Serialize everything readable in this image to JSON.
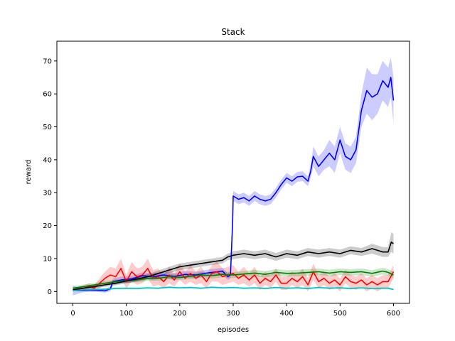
{
  "chart_data": {
    "type": "line",
    "title": "Stack",
    "xlabel": "episodes",
    "ylabel": "reward",
    "xlim": [
      -30,
      630
    ],
    "ylim": [
      -3.6,
      76
    ],
    "xticks": [
      0,
      100,
      200,
      300,
      400,
      500,
      600
    ],
    "yticks": [
      0,
      10,
      20,
      30,
      40,
      50,
      60,
      70
    ],
    "grid": false,
    "legend": "none",
    "series": [
      {
        "color": "#0000ff",
        "band_color": "#0000ff",
        "points": [
          [
            0,
            0.3
          ],
          [
            20,
            0.3
          ],
          [
            40,
            0.4
          ],
          [
            60,
            0.2
          ],
          [
            70,
            0.8
          ],
          [
            75,
            3
          ],
          [
            90,
            3.5
          ],
          [
            110,
            3.8
          ],
          [
            130,
            4.8
          ],
          [
            150,
            4.5
          ],
          [
            170,
            5.0
          ],
          [
            190,
            4.6
          ],
          [
            210,
            5.2
          ],
          [
            230,
            5.0
          ],
          [
            250,
            5.6
          ],
          [
            270,
            6.0
          ],
          [
            280,
            6.2
          ],
          [
            290,
            4.5
          ],
          [
            295,
            5
          ],
          [
            299,
            21
          ],
          [
            300,
            29
          ],
          [
            310,
            28
          ],
          [
            320,
            28.5
          ],
          [
            330,
            27.5
          ],
          [
            340,
            29
          ],
          [
            350,
            28
          ],
          [
            360,
            27.5
          ],
          [
            370,
            28
          ],
          [
            380,
            30
          ],
          [
            390,
            32.5
          ],
          [
            400,
            34.5
          ],
          [
            410,
            33.5
          ],
          [
            420,
            34.8
          ],
          [
            430,
            35
          ],
          [
            440,
            33.5
          ],
          [
            445,
            36.5
          ],
          [
            450,
            41
          ],
          [
            460,
            38
          ],
          [
            470,
            40
          ],
          [
            480,
            42
          ],
          [
            490,
            40
          ],
          [
            500,
            46
          ],
          [
            510,
            41
          ],
          [
            520,
            40
          ],
          [
            530,
            43
          ],
          [
            540,
            55
          ],
          [
            550,
            61
          ],
          [
            560,
            59
          ],
          [
            570,
            60
          ],
          [
            580,
            64
          ],
          [
            590,
            62
          ],
          [
            595,
            65
          ],
          [
            600,
            58
          ]
        ],
        "band": [
          1.5,
          0.5,
          0.5,
          0.5,
          0.8,
          1,
          1,
          1,
          1,
          1,
          1,
          1,
          1,
          1,
          1,
          1,
          1,
          1,
          1,
          3,
          1.5,
          1.5,
          1.5,
          1.5,
          1.5,
          1.5,
          1.5,
          1.5,
          1.5,
          1.5,
          1.5,
          1.5,
          1.5,
          1.5,
          1.5,
          2,
          3,
          3,
          3,
          4,
          4,
          4,
          4,
          4,
          4,
          5,
          7,
          7,
          6,
          6,
          6,
          6,
          7
        ]
      },
      {
        "color": "#ff0000",
        "band_color": "#ff0000",
        "points": [
          [
            0,
            0.5
          ],
          [
            10,
            0.8
          ],
          [
            20,
            1
          ],
          [
            30,
            1.5
          ],
          [
            40,
            1.0
          ],
          [
            50,
            2.5
          ],
          [
            60,
            4
          ],
          [
            70,
            5
          ],
          [
            80,
            4.5
          ],
          [
            90,
            7
          ],
          [
            100,
            3
          ],
          [
            110,
            6
          ],
          [
            120,
            4.5
          ],
          [
            130,
            5
          ],
          [
            140,
            7
          ],
          [
            150,
            4
          ],
          [
            160,
            4.5
          ],
          [
            170,
            3
          ],
          [
            180,
            5
          ],
          [
            190,
            3.5
          ],
          [
            200,
            6
          ],
          [
            210,
            4
          ],
          [
            220,
            5.5
          ],
          [
            230,
            4
          ],
          [
            240,
            5
          ],
          [
            250,
            3
          ],
          [
            260,
            5.5
          ],
          [
            270,
            6
          ],
          [
            280,
            4.5
          ],
          [
            290,
            5
          ],
          [
            300,
            5.5
          ],
          [
            310,
            4
          ],
          [
            320,
            5
          ],
          [
            330,
            3.5
          ],
          [
            340,
            5
          ],
          [
            350,
            2.5
          ],
          [
            360,
            4
          ],
          [
            370,
            3
          ],
          [
            380,
            5
          ],
          [
            390,
            2.5
          ],
          [
            400,
            2.5
          ],
          [
            410,
            4
          ],
          [
            420,
            3
          ],
          [
            430,
            4.5
          ],
          [
            440,
            2
          ],
          [
            450,
            6
          ],
          [
            460,
            3
          ],
          [
            470,
            4
          ],
          [
            480,
            2.5
          ],
          [
            490,
            3.5
          ],
          [
            500,
            2
          ],
          [
            510,
            4.5
          ],
          [
            520,
            3
          ],
          [
            530,
            2.5
          ],
          [
            540,
            3.5
          ],
          [
            550,
            2
          ],
          [
            560,
            3
          ],
          [
            570,
            2
          ],
          [
            580,
            3
          ],
          [
            590,
            3
          ],
          [
            600,
            6
          ]
        ],
        "band": [
          0.5,
          0.5,
          0.8,
          1,
          1,
          1.5,
          2,
          2.5,
          2.5,
          3,
          2,
          3,
          2.5,
          2.5,
          3,
          2.5,
          2.5,
          2,
          2.5,
          2,
          2.5,
          2,
          2.5,
          2,
          2.5,
          2,
          2.5,
          3,
          2.5,
          2.5,
          2.5,
          2,
          2.5,
          2,
          2.5,
          2,
          2,
          2,
          2,
          2,
          2,
          2,
          2,
          2.5,
          2,
          2.5,
          2,
          2,
          2,
          2,
          2,
          2,
          2,
          2,
          2,
          2,
          2,
          2,
          2,
          2,
          2
        ]
      },
      {
        "color": "#008000",
        "band_color": "#008000",
        "points": [
          [
            0,
            1.0
          ],
          [
            20,
            1.5
          ],
          [
            40,
            2.0
          ],
          [
            60,
            2.5
          ],
          [
            80,
            3.0
          ],
          [
            100,
            3.3
          ],
          [
            120,
            3.5
          ],
          [
            140,
            4.0
          ],
          [
            160,
            4.0
          ],
          [
            180,
            4.5
          ],
          [
            200,
            4.3
          ],
          [
            220,
            4.6
          ],
          [
            240,
            5.0
          ],
          [
            260,
            4.8
          ],
          [
            280,
            5.2
          ],
          [
            300,
            5.0
          ],
          [
            320,
            5.3
          ],
          [
            340,
            5.6
          ],
          [
            360,
            5.2
          ],
          [
            380,
            5.8
          ],
          [
            400,
            5.5
          ],
          [
            420,
            5.6
          ],
          [
            440,
            5.8
          ],
          [
            460,
            6.0
          ],
          [
            480,
            5.6
          ],
          [
            500,
            6.0
          ],
          [
            520,
            5.8
          ],
          [
            540,
            6.0
          ],
          [
            560,
            5.5
          ],
          [
            580,
            6.2
          ],
          [
            590,
            5.8
          ],
          [
            600,
            5.0
          ]
        ],
        "band": [
          0.6,
          0.6,
          0.6,
          0.6,
          0.7,
          0.7,
          0.7,
          0.8,
          0.8,
          0.8,
          0.8,
          0.8,
          0.9,
          0.9,
          0.9,
          0.9,
          0.9,
          1,
          1,
          1,
          1,
          1,
          1,
          1,
          1,
          1,
          1,
          1,
          1,
          1,
          1,
          1
        ]
      },
      {
        "color": "#000000",
        "band_color": "#000000",
        "points": [
          [
            0,
            0.5
          ],
          [
            20,
            1.0
          ],
          [
            40,
            1.5
          ],
          [
            60,
            2.0
          ],
          [
            80,
            2.5
          ],
          [
            100,
            3.2
          ],
          [
            120,
            3.8
          ],
          [
            140,
            4.5
          ],
          [
            160,
            5.5
          ],
          [
            180,
            6.5
          ],
          [
            200,
            7.5
          ],
          [
            220,
            8
          ],
          [
            240,
            8.5
          ],
          [
            260,
            9
          ],
          [
            280,
            9.5
          ],
          [
            290,
            10.5
          ],
          [
            300,
            11
          ],
          [
            320,
            11.5
          ],
          [
            340,
            11
          ],
          [
            360,
            11.5
          ],
          [
            380,
            10.5
          ],
          [
            400,
            11.5
          ],
          [
            420,
            11
          ],
          [
            440,
            12
          ],
          [
            460,
            11.5
          ],
          [
            480,
            12
          ],
          [
            500,
            11.5
          ],
          [
            520,
            12.5
          ],
          [
            540,
            12
          ],
          [
            560,
            13
          ],
          [
            580,
            12
          ],
          [
            590,
            12
          ],
          [
            596,
            15
          ],
          [
            600,
            14.5
          ]
        ],
        "band": [
          0.5,
          0.5,
          0.5,
          0.6,
          0.6,
          0.7,
          0.8,
          0.8,
          0.9,
          1,
          1,
          1,
          1,
          1,
          1,
          1,
          1.2,
          1.2,
          1.2,
          1.2,
          1.2,
          1.2,
          1.2,
          1.2,
          1.2,
          1.2,
          1.2,
          1.2,
          1.2,
          1.5,
          1.5,
          1.5,
          3,
          3
        ]
      },
      {
        "color": "#00bfbf",
        "band_color": "#00bfbf",
        "points": [
          [
            0,
            0.3
          ],
          [
            20,
            0.5
          ],
          [
            40,
            0.6
          ],
          [
            60,
            0.7
          ],
          [
            80,
            0.9
          ],
          [
            100,
            1.0
          ],
          [
            120,
            0.9
          ],
          [
            140,
            1.1
          ],
          [
            160,
            1.0
          ],
          [
            180,
            1.3
          ],
          [
            200,
            1.1
          ],
          [
            220,
            1.2
          ],
          [
            240,
            1.0
          ],
          [
            260,
            1.3
          ],
          [
            280,
            1.1
          ],
          [
            300,
            1.2
          ],
          [
            320,
            1.0
          ],
          [
            340,
            1.1
          ],
          [
            360,
            0.9
          ],
          [
            380,
            1.2
          ],
          [
            400,
            1.0
          ],
          [
            420,
            1.1
          ],
          [
            440,
            0.9
          ],
          [
            460,
            1.2
          ],
          [
            480,
            1.0
          ],
          [
            500,
            1.1
          ],
          [
            520,
            0.9
          ],
          [
            540,
            1.1
          ],
          [
            560,
            0.9
          ],
          [
            580,
            1.0
          ],
          [
            590,
            1.0
          ],
          [
            600,
            0.6
          ]
        ],
        "band": [
          0.3,
          0.3,
          0.3,
          0.3,
          0.3,
          0.3,
          0.3,
          0.3,
          0.3,
          0.3,
          0.3,
          0.3,
          0.3,
          0.3,
          0.3,
          0.3,
          0.3,
          0.3,
          0.3,
          0.3,
          0.3,
          0.3,
          0.3,
          0.3,
          0.3,
          0.3,
          0.3,
          0.3,
          0.3,
          0.3,
          0.3,
          0.3
        ]
      }
    ]
  }
}
